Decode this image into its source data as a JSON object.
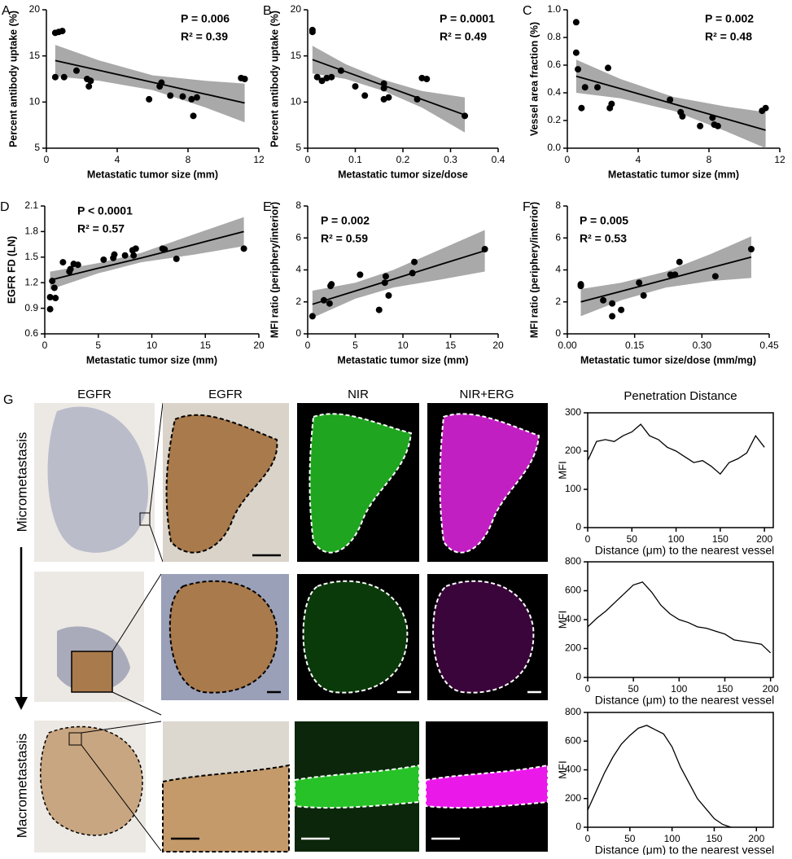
{
  "chart_data": [
    {
      "type": "scatter",
      "panel": "A",
      "xlabel": "Metastatic tumor size (mm)",
      "ylabel": "Percent antibody uptake (%)",
      "annotations": [
        "P = 0.006",
        "R² = 0.39"
      ],
      "x": [
        0.5,
        0.5,
        0.7,
        0.9,
        1.0,
        1.7,
        2.3,
        2.4,
        2.5,
        5.8,
        6.4,
        6.5,
        7.0,
        7.7,
        8.2,
        8.3,
        8.5,
        11.0,
        11.2
      ],
      "values": [
        12.7,
        17.5,
        17.6,
        17.7,
        12.7,
        13.4,
        12.5,
        11.7,
        12.3,
        10.3,
        11.7,
        12.1,
        10.7,
        10.6,
        10.3,
        8.5,
        10.5,
        12.6,
        12.5
      ],
      "fit_x": [
        0.5,
        3,
        6,
        9,
        11.2
      ],
      "fit_y": [
        14.5,
        13.43,
        12.14,
        10.85,
        9.9
      ],
      "band_lower": [
        12.8,
        12.3,
        11.3,
        9.4,
        7.8
      ],
      "band_upper": [
        16.2,
        14.5,
        12.9,
        12.3,
        12.0
      ],
      "xlim": [
        0,
        12
      ],
      "xticks": [
        0,
        4,
        8,
        12
      ],
      "ylim": [
        5,
        20
      ],
      "yticks": [
        5,
        10,
        15,
        20
      ]
    },
    {
      "type": "scatter",
      "panel": "B",
      "xlabel": "Metastatic tumor size/dose",
      "ylabel": "Percent antibody uptake (%)",
      "annotations": [
        "P = 0.0001",
        "R² = 0.49"
      ],
      "x": [
        0.01,
        0.01,
        0.02,
        0.03,
        0.04,
        0.05,
        0.07,
        0.1,
        0.12,
        0.16,
        0.16,
        0.16,
        0.17,
        0.23,
        0.24,
        0.25,
        0.33
      ],
      "values": [
        17.6,
        17.8,
        12.7,
        12.3,
        12.6,
        12.7,
        13.4,
        11.7,
        10.7,
        11.5,
        12.0,
        10.3,
        10.5,
        10.3,
        12.6,
        12.5,
        8.5
      ],
      "fit_x": [
        0.01,
        0.08,
        0.16,
        0.24,
        0.33
      ],
      "fit_y": [
        14.6,
        13.29,
        11.79,
        10.29,
        8.6
      ],
      "band_lower": [
        13.1,
        12.5,
        11.2,
        9.4,
        6.7
      ],
      "band_upper": [
        16.1,
        14.1,
        12.4,
        11.2,
        10.5
      ],
      "xlim": [
        0,
        0.4
      ],
      "xticks": [
        0,
        0.1,
        0.2,
        0.3,
        0.4
      ],
      "ylim": [
        5,
        20
      ],
      "yticks": [
        5,
        10,
        15,
        20
      ]
    },
    {
      "type": "scatter",
      "panel": "C",
      "xlabel": "Metastatic tumor size (mm)",
      "ylabel": "Vessel area fraction (%)",
      "annotations": [
        "P = 0.002",
        "R² = 0.48"
      ],
      "x": [
        0.5,
        0.5,
        0.6,
        0.8,
        1.0,
        1.7,
        2.3,
        2.4,
        2.5,
        5.8,
        6.4,
        6.5,
        7.5,
        8.2,
        8.3,
        8.5,
        11.0,
        11.2
      ],
      "values": [
        0.91,
        0.69,
        0.57,
        0.29,
        0.44,
        0.44,
        0.58,
        0.29,
        0.32,
        0.35,
        0.26,
        0.23,
        0.16,
        0.22,
        0.17,
        0.16,
        0.27,
        0.29
      ],
      "fit_x": [
        0.5,
        3,
        6,
        9,
        11.2
      ],
      "fit_y": [
        0.52,
        0.43,
        0.32,
        0.21,
        0.13
      ],
      "band_lower": [
        0.4,
        0.36,
        0.27,
        0.12,
        0.0
      ],
      "band_upper": [
        0.64,
        0.5,
        0.37,
        0.3,
        0.26
      ],
      "xlim": [
        0,
        12
      ],
      "xticks": [
        0,
        4,
        8,
        12
      ],
      "ylim": [
        0,
        1
      ],
      "yticks": [
        {
          "value": 0,
          "label": "0.0"
        },
        0.2,
        0.4,
        0.6,
        0.8,
        {
          "value": 1,
          "label": "1.0"
        }
      ]
    },
    {
      "type": "scatter",
      "panel": "D",
      "xlabel": "Metastatic tumor size (mm)",
      "ylabel": "EGFR FD (LN)",
      "annotations": [
        "P < 0.0001",
        "R² = 0.57"
      ],
      "x": [
        0.5,
        0.5,
        0.7,
        0.9,
        1.0,
        1.7,
        2.3,
        2.4,
        2.7,
        3.1,
        5.5,
        6.4,
        6.5,
        7.5,
        8.2,
        8.3,
        8.5,
        11.0,
        11.2,
        12.3,
        18.6
      ],
      "values": [
        0.89,
        1.03,
        1.22,
        1.14,
        1.02,
        1.44,
        1.33,
        1.36,
        1.42,
        1.41,
        1.47,
        1.49,
        1.53,
        1.52,
        1.58,
        1.52,
        1.6,
        1.6,
        1.59,
        1.48,
        1.6
      ],
      "fit_x": [
        0.5,
        5,
        9,
        14,
        18.6
      ],
      "fit_y": [
        1.23,
        1.37,
        1.49,
        1.65,
        1.8
      ],
      "band_lower": [
        1.12,
        1.31,
        1.44,
        1.53,
        1.63
      ],
      "band_upper": [
        1.33,
        1.43,
        1.55,
        1.77,
        1.97
      ],
      "xlim": [
        0,
        20
      ],
      "xticks": [
        0,
        5,
        10,
        15,
        20
      ],
      "ylim": [
        0.6,
        2.1
      ],
      "yticks": [
        0.6,
        0.9,
        1.2,
        1.5,
        1.8,
        2.1
      ]
    },
    {
      "type": "scatter",
      "panel": "E",
      "xlabel": "Metastatic tumor size (mm)",
      "ylabel": "MFI ratio (periphery/interior)",
      "annotations": [
        "P = 0.002",
        "R² = 0.59"
      ],
      "x": [
        0.5,
        1.7,
        2.3,
        2.4,
        2.5,
        5.5,
        7.5,
        8.1,
        8.2,
        8.5,
        11.0,
        11.2,
        18.6
      ],
      "values": [
        1.1,
        2.1,
        1.9,
        3.0,
        3.1,
        3.7,
        1.5,
        3.2,
        3.6,
        2.4,
        3.8,
        4.5,
        5.3
      ],
      "fit_x": [
        0.5,
        5,
        9,
        14,
        18.6
      ],
      "fit_y": [
        1.85,
        2.68,
        3.42,
        4.35,
        5.2
      ],
      "band_lower": [
        1.0,
        2.2,
        2.9,
        3.4,
        3.9
      ],
      "band_upper": [
        2.7,
        3.2,
        4.0,
        5.3,
        6.5
      ],
      "xlim": [
        0,
        20
      ],
      "xticks": [
        0,
        5,
        10,
        15,
        20
      ],
      "ylim": [
        0,
        8
      ],
      "yticks": [
        0,
        2,
        4,
        6,
        8
      ]
    },
    {
      "type": "scatter",
      "panel": "F",
      "xlabel": "Metastatic tumor size/dose (mm/mg)",
      "ylabel": "MFI ratio (periphery/interior)",
      "annotations": [
        "P = 0.005",
        "R² = 0.53"
      ],
      "x": [
        0.03,
        0.03,
        0.08,
        0.1,
        0.1,
        0.12,
        0.16,
        0.17,
        0.23,
        0.24,
        0.25,
        0.33,
        0.41
      ],
      "values": [
        3.0,
        3.1,
        2.1,
        1.9,
        1.1,
        1.5,
        3.2,
        2.4,
        3.7,
        3.7,
        4.5,
        3.6,
        5.3
      ],
      "fit_x": [
        0.03,
        0.12,
        0.22,
        0.32,
        0.41
      ],
      "fit_y": [
        2.0,
        2.66,
        3.4,
        4.14,
        4.8
      ],
      "band_lower": [
        1.1,
        2.1,
        2.9,
        3.3,
        3.5
      ],
      "band_upper": [
        2.8,
        3.2,
        3.9,
        5.0,
        6.1
      ],
      "xlim": [
        0,
        0.45
      ],
      "xticks": [
        {
          "value": 0,
          "label": "0.00"
        },
        0.15,
        {
          "value": 0.3,
          "label": "0.30"
        },
        0.45
      ],
      "ylim": [
        0,
        8
      ],
      "yticks": [
        0,
        2,
        4,
        6,
        8
      ]
    },
    {
      "type": "line",
      "title": "Penetration Distance",
      "xlabel": "Distance (μm) to the nearest vessel",
      "ylabel": "MFI",
      "x": [
        0,
        10,
        20,
        30,
        40,
        50,
        60,
        70,
        80,
        90,
        100,
        110,
        120,
        130,
        140,
        150,
        160,
        170,
        180,
        190,
        200
      ],
      "values": [
        175,
        225,
        230,
        225,
        240,
        250,
        270,
        240,
        230,
        210,
        200,
        185,
        170,
        175,
        160,
        140,
        170,
        180,
        195,
        240,
        210
      ],
      "xlim": [
        0,
        210
      ],
      "xticks": [
        0,
        50,
        100,
        150,
        200
      ],
      "ylim": [
        0,
        300
      ],
      "yticks": [
        0,
        100,
        200,
        300
      ]
    },
    {
      "type": "line",
      "xlabel": "Distance (μm) to the nearest vessel",
      "ylabel": "MFI",
      "x": [
        0,
        10,
        20,
        30,
        40,
        50,
        60,
        70,
        80,
        90,
        100,
        110,
        120,
        130,
        140,
        150,
        160,
        170,
        180,
        190,
        200
      ],
      "values": [
        350,
        410,
        460,
        520,
        580,
        640,
        660,
        590,
        500,
        440,
        400,
        380,
        350,
        340,
        320,
        300,
        260,
        250,
        240,
        230,
        170
      ],
      "xlim": [
        0,
        203
      ],
      "xticks": [
        0,
        50,
        100,
        150,
        200
      ],
      "ylim": [
        0,
        800
      ],
      "yticks": [
        0,
        200,
        400,
        600,
        800
      ]
    },
    {
      "type": "line",
      "xlabel": "Distance (μm) to the nearest vessel",
      "ylabel": "MFI",
      "x": [
        0,
        10,
        20,
        30,
        40,
        50,
        60,
        70,
        80,
        90,
        100,
        110,
        120,
        130,
        140,
        150,
        160,
        170
      ],
      "values": [
        120,
        250,
        380,
        490,
        580,
        640,
        690,
        710,
        680,
        650,
        560,
        420,
        310,
        200,
        130,
        60,
        20,
        0
      ],
      "xlim": [
        0,
        220
      ],
      "xticks": [
        0,
        50,
        100,
        150,
        200
      ],
      "ylim": [
        0,
        800
      ],
      "yticks": [
        0,
        200,
        400,
        600,
        800
      ]
    }
  ],
  "panel_g": {
    "letter": "G",
    "column_titles": [
      "EGFR",
      "EGFR",
      "NIR",
      "NIR+ERG"
    ],
    "row_labels": [
      "Micrometastasis",
      "Macrometastasis"
    ]
  }
}
